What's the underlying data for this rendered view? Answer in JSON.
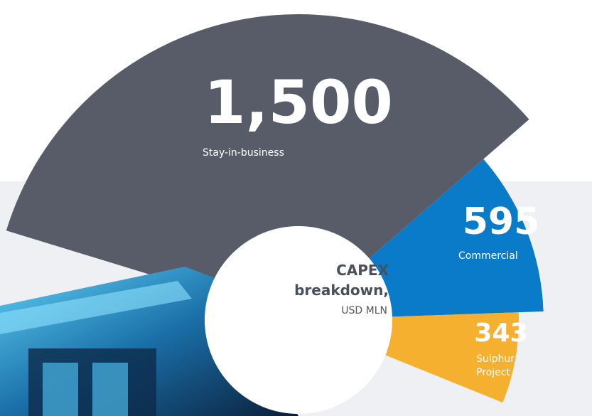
{
  "chart_data": {
    "type": "polar-area",
    "title": "CAPEX breakdown,",
    "subtitle": "USD MLN",
    "categories": [
      "Stay-in-business",
      "Commercial",
      "Sulphur Project"
    ],
    "values": [
      1500,
      595,
      343
    ],
    "value_labels": [
      "1,500",
      "595",
      "343"
    ],
    "colors": [
      "#575c68",
      "#0a7bc8",
      "#f6b030"
    ]
  }
}
